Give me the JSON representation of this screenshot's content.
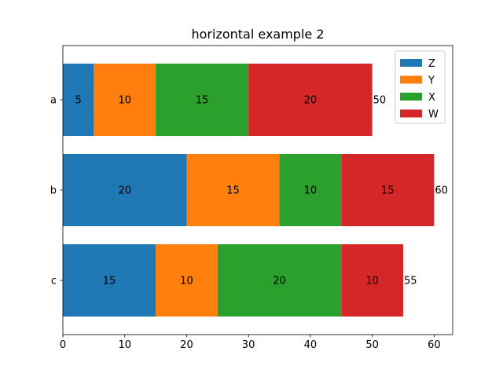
{
  "chart_data": {
    "type": "bar",
    "orientation": "horizontal",
    "stacked": true,
    "title": "horizontal example 2",
    "xlabel": "",
    "ylabel": "",
    "categories": [
      "a",
      "b",
      "c"
    ],
    "xlim": [
      0,
      63
    ],
    "xticks": [
      0,
      10,
      20,
      30,
      40,
      50,
      60
    ],
    "series": [
      {
        "name": "Z",
        "values": [
          5,
          20,
          15
        ],
        "color": "#1f77b4"
      },
      {
        "name": "Y",
        "values": [
          10,
          15,
          10
        ],
        "color": "#ff7f0e"
      },
      {
        "name": "X",
        "values": [
          15,
          10,
          20
        ],
        "color": "#2ca02c"
      },
      {
        "name": "W",
        "values": [
          20,
          15,
          10
        ],
        "color": "#d62728"
      }
    ],
    "totals": [
      50,
      60,
      55
    ],
    "legend": {
      "position": "top-right",
      "entries": [
        "Z",
        "Y",
        "X",
        "W"
      ]
    },
    "grid": false
  }
}
